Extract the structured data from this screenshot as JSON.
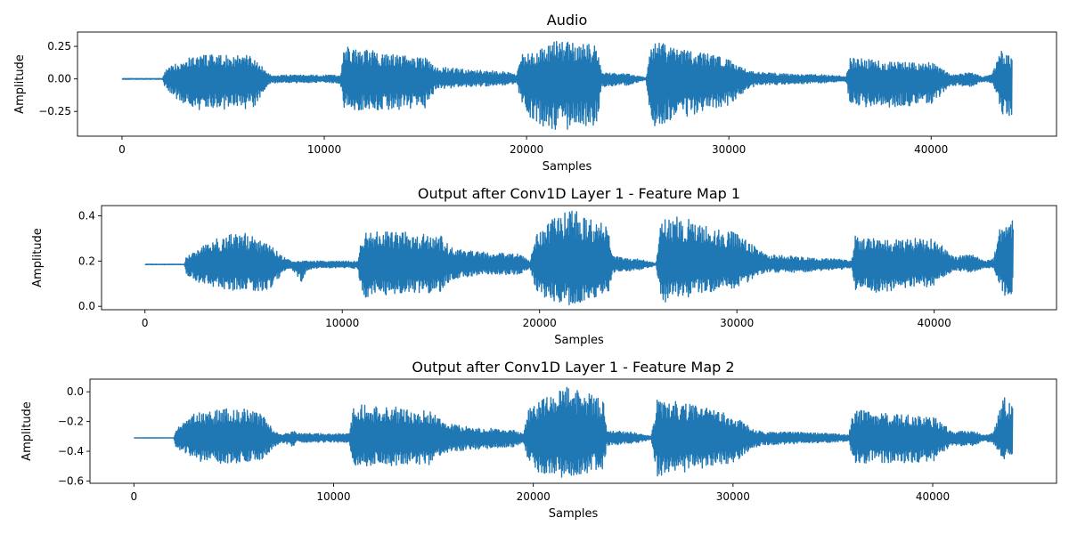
{
  "line_color": "#1f77b4",
  "chart_data": [
    {
      "type": "line",
      "title": "Audio",
      "xlabel": "Samples",
      "ylabel": "Amplitude",
      "xlim": [
        -2200,
        46200
      ],
      "ylim": [
        -0.44,
        0.36
      ],
      "xticks": [
        0,
        10000,
        20000,
        30000,
        40000
      ],
      "xtick_labels": [
        "0",
        "10000",
        "20000",
        "30000",
        "40000"
      ],
      "yticks": [
        0.25,
        0.0,
        -0.25
      ],
      "ytick_labels": [
        "0.25",
        "0.00",
        "−0.25"
      ],
      "grid": false,
      "series": [
        {
          "baseline": 0.0,
          "x": [
            0,
            2000,
            2100,
            3000,
            4000,
            5000,
            6000,
            6500,
            7000,
            7400,
            8000,
            8200,
            9000,
            10500,
            10800,
            11000,
            13000,
            15000,
            15500,
            17000,
            19000,
            19500,
            19800,
            20200,
            21000,
            21500,
            22500,
            23500,
            23700,
            25000,
            25900,
            26200,
            27500,
            28500,
            30000,
            31000,
            31500,
            33000,
            35000,
            35800,
            36000,
            37000,
            38000,
            40000,
            41000,
            42000,
            42500,
            43000,
            43400,
            43600,
            44000
          ],
          "upper": [
            0.003,
            0.003,
            0.06,
            0.16,
            0.19,
            0.18,
            0.19,
            0.17,
            0.08,
            0.02,
            0.03,
            0.03,
            0.03,
            0.03,
            0.03,
            0.25,
            0.2,
            0.16,
            0.1,
            0.07,
            0.06,
            0.03,
            0.2,
            0.22,
            0.25,
            0.3,
            0.28,
            0.26,
            0.05,
            0.04,
            0.01,
            0.3,
            0.23,
            0.21,
            0.15,
            0.07,
            0.05,
            0.04,
            0.03,
            0.02,
            0.16,
            0.15,
            0.13,
            0.13,
            0.03,
            0.05,
            0.02,
            0.03,
            0.2,
            0.23,
            0.17
          ],
          "lower": [
            -0.003,
            -0.003,
            -0.06,
            -0.2,
            -0.25,
            -0.24,
            -0.23,
            -0.22,
            -0.1,
            -0.03,
            -0.03,
            -0.03,
            -0.03,
            -0.03,
            -0.04,
            -0.24,
            -0.24,
            -0.23,
            -0.08,
            -0.06,
            -0.05,
            -0.03,
            -0.22,
            -0.3,
            -0.38,
            -0.41,
            -0.38,
            -0.35,
            -0.06,
            -0.05,
            -0.01,
            -0.38,
            -0.3,
            -0.27,
            -0.2,
            -0.07,
            -0.05,
            -0.04,
            -0.03,
            -0.02,
            -0.2,
            -0.22,
            -0.22,
            -0.2,
            -0.05,
            -0.06,
            -0.02,
            -0.03,
            -0.23,
            -0.31,
            -0.3
          ]
        }
      ]
    },
    {
      "type": "line",
      "title": "Output after Conv1D Layer 1 - Feature Map 1",
      "xlabel": "Samples",
      "ylabel": "Amplitude",
      "xlim": [
        -2200,
        46200
      ],
      "ylim": [
        -0.015,
        0.445
      ],
      "xticks": [
        0,
        10000,
        20000,
        30000,
        40000
      ],
      "xtick_labels": [
        "0",
        "10000",
        "20000",
        "30000",
        "40000"
      ],
      "yticks": [
        0.4,
        0.2,
        0.0
      ],
      "ytick_labels": [
        "0.4",
        "0.2",
        "0.0"
      ],
      "grid": false,
      "series": [
        {
          "baseline": 0.185,
          "x": [
            0,
            2000,
            2100,
            3000,
            4000,
            5000,
            6000,
            6500,
            7000,
            7400,
            8000,
            8200,
            9000,
            10500,
            10800,
            11000,
            13000,
            15000,
            15500,
            17000,
            19000,
            19500,
            19800,
            20200,
            21000,
            21500,
            22500,
            23500,
            23700,
            25000,
            25900,
            26200,
            27500,
            28500,
            30000,
            31000,
            31500,
            33000,
            35000,
            35800,
            36000,
            37000,
            38000,
            40000,
            41000,
            42000,
            42500,
            43000,
            43400,
            43600,
            44000
          ],
          "upper": [
            0.186,
            0.186,
            0.22,
            0.28,
            0.31,
            0.33,
            0.28,
            0.27,
            0.22,
            0.2,
            0.2,
            0.2,
            0.2,
            0.2,
            0.2,
            0.33,
            0.33,
            0.31,
            0.26,
            0.24,
            0.23,
            0.2,
            0.31,
            0.36,
            0.41,
            0.43,
            0.4,
            0.38,
            0.22,
            0.21,
            0.19,
            0.4,
            0.39,
            0.37,
            0.32,
            0.26,
            0.23,
            0.22,
            0.21,
            0.2,
            0.31,
            0.3,
            0.3,
            0.3,
            0.22,
            0.23,
            0.2,
            0.21,
            0.37,
            0.41,
            0.38
          ],
          "lower": [
            0.184,
            0.184,
            0.14,
            0.09,
            0.07,
            0.07,
            0.07,
            0.08,
            0.15,
            0.17,
            0.1,
            0.16,
            0.17,
            0.17,
            0.16,
            0.04,
            0.05,
            0.06,
            0.12,
            0.14,
            0.14,
            0.17,
            0.07,
            0.03,
            0.02,
            0.0,
            0.02,
            0.04,
            0.15,
            0.16,
            0.18,
            0.01,
            0.04,
            0.06,
            0.08,
            0.13,
            0.15,
            0.15,
            0.16,
            0.17,
            0.07,
            0.06,
            0.07,
            0.09,
            0.16,
            0.15,
            0.17,
            0.17,
            0.06,
            0.04,
            0.06
          ]
        }
      ]
    },
    {
      "type": "line",
      "title": "Output after Conv1D Layer 1 - Feature Map 2",
      "xlabel": "Samples",
      "ylabel": "Amplitude",
      "xlim": [
        -2200,
        46200
      ],
      "ylim": [
        -0.615,
        0.085
      ],
      "xticks": [
        0,
        10000,
        20000,
        30000,
        40000
      ],
      "xtick_labels": [
        "0",
        "10000",
        "20000",
        "30000",
        "40000"
      ],
      "yticks": [
        0.0,
        -0.2,
        -0.4,
        -0.6
      ],
      "ytick_labels": [
        "0.0",
        "−0.2",
        "−0.4",
        "−0.6"
      ],
      "grid": false,
      "series": [
        {
          "baseline": -0.31,
          "x": [
            0,
            2000,
            2100,
            3000,
            4000,
            5000,
            6000,
            6500,
            7000,
            7400,
            8000,
            8200,
            9000,
            10500,
            10800,
            11000,
            13000,
            15000,
            15500,
            17000,
            19000,
            19500,
            19800,
            20200,
            21000,
            21500,
            22500,
            23500,
            23700,
            25000,
            25900,
            26200,
            27500,
            28500,
            30000,
            31000,
            31500,
            33000,
            35000,
            35800,
            36000,
            37000,
            38000,
            40000,
            41000,
            42000,
            42500,
            43000,
            43400,
            43600,
            44000
          ],
          "upper": [
            -0.309,
            -0.309,
            -0.25,
            -0.15,
            -0.12,
            -0.1,
            -0.13,
            -0.16,
            -0.26,
            -0.29,
            -0.26,
            -0.28,
            -0.28,
            -0.28,
            -0.28,
            -0.08,
            -0.1,
            -0.12,
            -0.21,
            -0.24,
            -0.25,
            -0.28,
            -0.1,
            -0.05,
            0.01,
            0.04,
            0.0,
            -0.04,
            -0.26,
            -0.27,
            -0.3,
            -0.04,
            -0.07,
            -0.1,
            -0.15,
            -0.25,
            -0.27,
            -0.27,
            -0.28,
            -0.29,
            -0.12,
            -0.13,
            -0.15,
            -0.16,
            -0.27,
            -0.26,
            -0.29,
            -0.28,
            -0.1,
            -0.02,
            -0.08
          ],
          "lower": [
            -0.311,
            -0.311,
            -0.37,
            -0.46,
            -0.49,
            -0.48,
            -0.47,
            -0.46,
            -0.37,
            -0.34,
            -0.37,
            -0.34,
            -0.34,
            -0.34,
            -0.35,
            -0.5,
            -0.5,
            -0.49,
            -0.41,
            -0.39,
            -0.37,
            -0.34,
            -0.5,
            -0.54,
            -0.57,
            -0.58,
            -0.55,
            -0.52,
            -0.36,
            -0.35,
            -0.32,
            -0.57,
            -0.54,
            -0.52,
            -0.48,
            -0.38,
            -0.36,
            -0.35,
            -0.34,
            -0.33,
            -0.48,
            -0.48,
            -0.48,
            -0.47,
            -0.36,
            -0.37,
            -0.33,
            -0.34,
            -0.45,
            -0.47,
            -0.46
          ]
        }
      ]
    }
  ]
}
